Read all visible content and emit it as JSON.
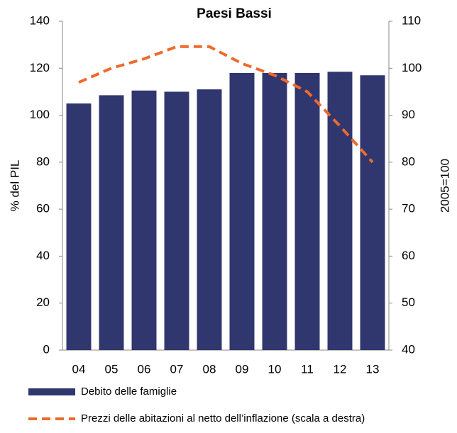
{
  "chart_data": {
    "type": "bar-line",
    "title": "Paesi Bassi",
    "categories": [
      "04",
      "05",
      "06",
      "07",
      "08",
      "09",
      "10",
      "11",
      "12",
      "13"
    ],
    "y_label": "% del PIL",
    "y2_label": "2005=100",
    "ylim": [
      0,
      140
    ],
    "yticks": [
      0,
      20,
      40,
      60,
      80,
      100,
      120,
      140
    ],
    "y2lim": [
      40,
      110
    ],
    "y2ticks": [
      40,
      50,
      60,
      70,
      80,
      90,
      100,
      110
    ],
    "series": [
      {
        "name": "Debito delle famiglie",
        "type": "bar",
        "color": "#30366e",
        "values": [
          105,
          108.5,
          110.5,
          110,
          111,
          118,
          118,
          118,
          118.5,
          117
        ]
      },
      {
        "name": "Prezzi delle abitazioni al netto dell’inflazione (scala a destra)",
        "type": "line",
        "axis": "y2",
        "color": "#ee6a2c",
        "dashed": true,
        "values": [
          97,
          100,
          102,
          104.6,
          104.6,
          101,
          98.5,
          95,
          87.7,
          80
        ]
      }
    ]
  }
}
